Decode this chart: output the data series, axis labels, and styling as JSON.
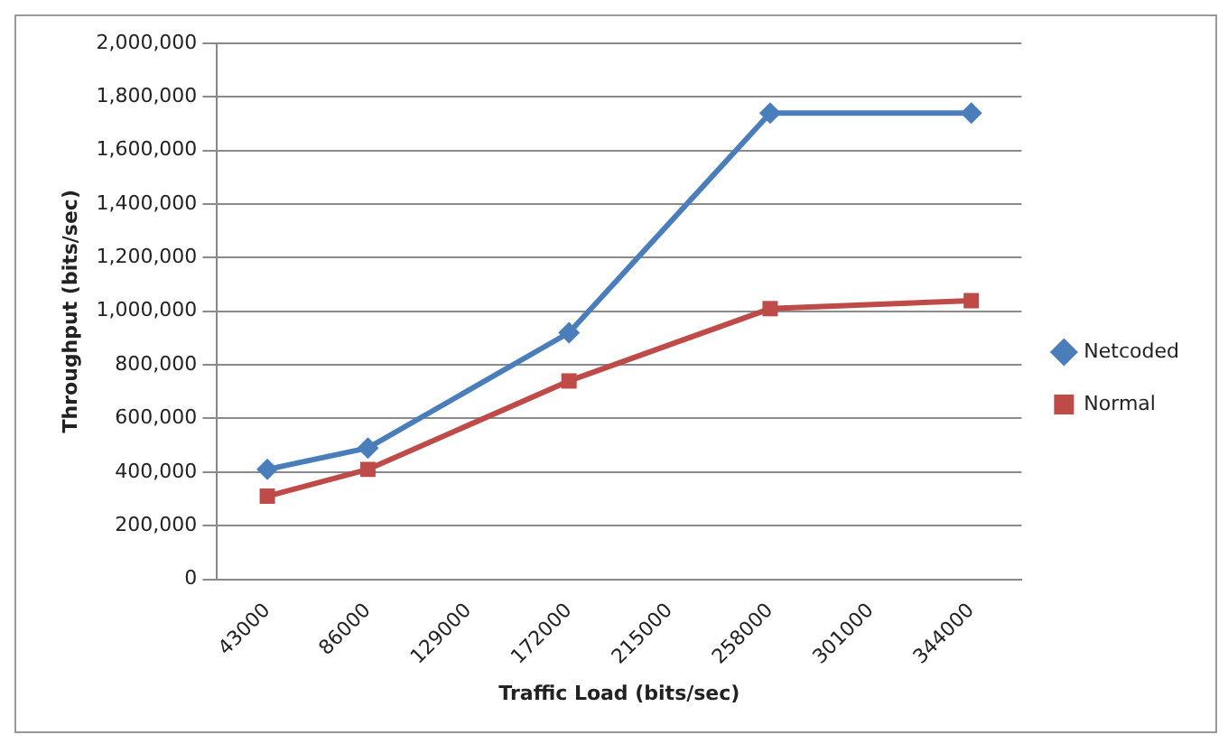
{
  "chart_data": {
    "type": "line",
    "xlabel": "Traffic Load (bits/sec)",
    "ylabel": "Throughput (bits/sec)",
    "categories": [
      "43000",
      "86000",
      "129000",
      "172000",
      "215000",
      "258000",
      "301000",
      "344000"
    ],
    "series": [
      {
        "name": "Netcoded",
        "color": "#4a7ebb",
        "marker": "diamond",
        "values": [
          410000,
          490000,
          null,
          920000,
          null,
          1740000,
          null,
          1740000
        ]
      },
      {
        "name": "Normal",
        "color": "#be4b48",
        "marker": "square",
        "values": [
          310000,
          410000,
          null,
          740000,
          null,
          1010000,
          null,
          1040000
        ]
      }
    ],
    "ylim": [
      0,
      2000000
    ],
    "yticks": [
      0,
      {
        "value": 200000,
        "label": "200,000"
      },
      {
        "value": 400000,
        "label": "400,000"
      },
      {
        "value": 600000,
        "label": "600,000"
      },
      {
        "value": 800000,
        "label": "800,000"
      },
      {
        "value": 1000000,
        "label": "1,000,000"
      },
      {
        "value": 1200000,
        "label": "1,200,000"
      },
      {
        "value": 1400000,
        "label": "1,400,000"
      },
      {
        "value": 1600000,
        "label": "1,600,000"
      },
      {
        "value": 1800000,
        "label": "1,800,000"
      },
      {
        "value": 2000000,
        "label": "2,000,000"
      }
    ],
    "grid": "y",
    "legend": "right",
    "line_style": "solid"
  }
}
